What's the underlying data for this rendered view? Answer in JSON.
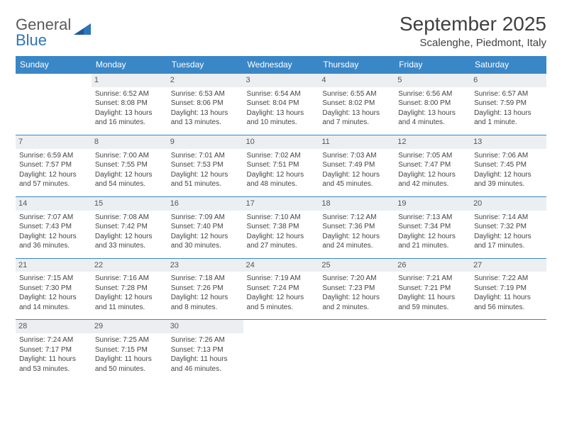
{
  "logo": {
    "word1": "General",
    "word2": "Blue"
  },
  "title": "September 2025",
  "location": "Scalenghe, Piedmont, Italy",
  "colors": {
    "header_bg": "#3a87c7",
    "header_fg": "#ffffff",
    "daynum_bg": "#eceff1",
    "cell_border": "#3a87c7",
    "logo_gray": "#58595b",
    "logo_blue": "#2e75b6",
    "text": "#404040"
  },
  "weekdays": [
    "Sunday",
    "Monday",
    "Tuesday",
    "Wednesday",
    "Thursday",
    "Friday",
    "Saturday"
  ],
  "weeks": [
    [
      null,
      {
        "n": "1",
        "sr": "6:52 AM",
        "ss": "8:08 PM",
        "dl": "13 hours and 16 minutes."
      },
      {
        "n": "2",
        "sr": "6:53 AM",
        "ss": "8:06 PM",
        "dl": "13 hours and 13 minutes."
      },
      {
        "n": "3",
        "sr": "6:54 AM",
        "ss": "8:04 PM",
        "dl": "13 hours and 10 minutes."
      },
      {
        "n": "4",
        "sr": "6:55 AM",
        "ss": "8:02 PM",
        "dl": "13 hours and 7 minutes."
      },
      {
        "n": "5",
        "sr": "6:56 AM",
        "ss": "8:00 PM",
        "dl": "13 hours and 4 minutes."
      },
      {
        "n": "6",
        "sr": "6:57 AM",
        "ss": "7:59 PM",
        "dl": "13 hours and 1 minute."
      }
    ],
    [
      {
        "n": "7",
        "sr": "6:59 AM",
        "ss": "7:57 PM",
        "dl": "12 hours and 57 minutes."
      },
      {
        "n": "8",
        "sr": "7:00 AM",
        "ss": "7:55 PM",
        "dl": "12 hours and 54 minutes."
      },
      {
        "n": "9",
        "sr": "7:01 AM",
        "ss": "7:53 PM",
        "dl": "12 hours and 51 minutes."
      },
      {
        "n": "10",
        "sr": "7:02 AM",
        "ss": "7:51 PM",
        "dl": "12 hours and 48 minutes."
      },
      {
        "n": "11",
        "sr": "7:03 AM",
        "ss": "7:49 PM",
        "dl": "12 hours and 45 minutes."
      },
      {
        "n": "12",
        "sr": "7:05 AM",
        "ss": "7:47 PM",
        "dl": "12 hours and 42 minutes."
      },
      {
        "n": "13",
        "sr": "7:06 AM",
        "ss": "7:45 PM",
        "dl": "12 hours and 39 minutes."
      }
    ],
    [
      {
        "n": "14",
        "sr": "7:07 AM",
        "ss": "7:43 PM",
        "dl": "12 hours and 36 minutes."
      },
      {
        "n": "15",
        "sr": "7:08 AM",
        "ss": "7:42 PM",
        "dl": "12 hours and 33 minutes."
      },
      {
        "n": "16",
        "sr": "7:09 AM",
        "ss": "7:40 PM",
        "dl": "12 hours and 30 minutes."
      },
      {
        "n": "17",
        "sr": "7:10 AM",
        "ss": "7:38 PM",
        "dl": "12 hours and 27 minutes."
      },
      {
        "n": "18",
        "sr": "7:12 AM",
        "ss": "7:36 PM",
        "dl": "12 hours and 24 minutes."
      },
      {
        "n": "19",
        "sr": "7:13 AM",
        "ss": "7:34 PM",
        "dl": "12 hours and 21 minutes."
      },
      {
        "n": "20",
        "sr": "7:14 AM",
        "ss": "7:32 PM",
        "dl": "12 hours and 17 minutes."
      }
    ],
    [
      {
        "n": "21",
        "sr": "7:15 AM",
        "ss": "7:30 PM",
        "dl": "12 hours and 14 minutes."
      },
      {
        "n": "22",
        "sr": "7:16 AM",
        "ss": "7:28 PM",
        "dl": "12 hours and 11 minutes."
      },
      {
        "n": "23",
        "sr": "7:18 AM",
        "ss": "7:26 PM",
        "dl": "12 hours and 8 minutes."
      },
      {
        "n": "24",
        "sr": "7:19 AM",
        "ss": "7:24 PM",
        "dl": "12 hours and 5 minutes."
      },
      {
        "n": "25",
        "sr": "7:20 AM",
        "ss": "7:23 PM",
        "dl": "12 hours and 2 minutes."
      },
      {
        "n": "26",
        "sr": "7:21 AM",
        "ss": "7:21 PM",
        "dl": "11 hours and 59 minutes."
      },
      {
        "n": "27",
        "sr": "7:22 AM",
        "ss": "7:19 PM",
        "dl": "11 hours and 56 minutes."
      }
    ],
    [
      {
        "n": "28",
        "sr": "7:24 AM",
        "ss": "7:17 PM",
        "dl": "11 hours and 53 minutes."
      },
      {
        "n": "29",
        "sr": "7:25 AM",
        "ss": "7:15 PM",
        "dl": "11 hours and 50 minutes."
      },
      {
        "n": "30",
        "sr": "7:26 AM",
        "ss": "7:13 PM",
        "dl": "11 hours and 46 minutes."
      },
      null,
      null,
      null,
      null
    ]
  ],
  "labels": {
    "sunrise": "Sunrise:",
    "sunset": "Sunset:",
    "daylight": "Daylight:"
  }
}
